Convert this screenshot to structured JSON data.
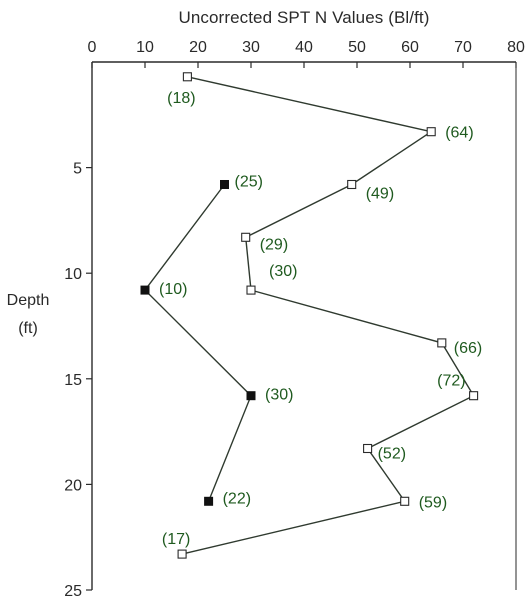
{
  "chart_data": {
    "type": "scatter",
    "title": "Uncorrected SPT N Values (Bl/ft)",
    "xlabel": "Uncorrected SPT N Values (Bl/ft)",
    "ylabel_line1": "Depth",
    "ylabel_line2": "(ft)",
    "xlim": [
      0,
      80
    ],
    "ylim": [
      25,
      0
    ],
    "x_ticks": [
      "0",
      "10",
      "20",
      "30",
      "40",
      "50",
      "60",
      "70",
      "80"
    ],
    "y_ticks": [
      "5",
      "10",
      "15",
      "20",
      "25"
    ],
    "x_axis_position": "top",
    "y_axis_inverted": true,
    "grid": false,
    "series": [
      {
        "marker": "open-square",
        "color": "#2a2a2a",
        "points": [
          {
            "n": 18,
            "depth": 0.7,
            "label": "(18)"
          },
          {
            "n": 64,
            "depth": 3.3,
            "label": "(64)"
          },
          {
            "n": 49,
            "depth": 5.8,
            "label": "(49)"
          },
          {
            "n": 29,
            "depth": 8.3,
            "label": "(29)"
          },
          {
            "n": 30,
            "depth": 10.8,
            "label": "(30)"
          },
          {
            "n": 66,
            "depth": 13.3,
            "label": "(66)"
          },
          {
            "n": 72,
            "depth": 15.8,
            "label": "(72)"
          },
          {
            "n": 52,
            "depth": 18.3,
            "label": "(52)"
          },
          {
            "n": 59,
            "depth": 20.8,
            "label": "(59)"
          },
          {
            "n": 17,
            "depth": 23.3,
            "label": "(17)"
          }
        ]
      },
      {
        "marker": "filled-square",
        "color": "#111111",
        "points": [
          {
            "n": 25,
            "depth": 5.8,
            "label": "(25)"
          },
          {
            "n": 10,
            "depth": 10.8,
            "label": "(10)"
          },
          {
            "n": 30,
            "depth": 15.8,
            "label": "(30)"
          },
          {
            "n": 22,
            "depth": 20.8,
            "label": "(22)"
          }
        ]
      }
    ]
  }
}
